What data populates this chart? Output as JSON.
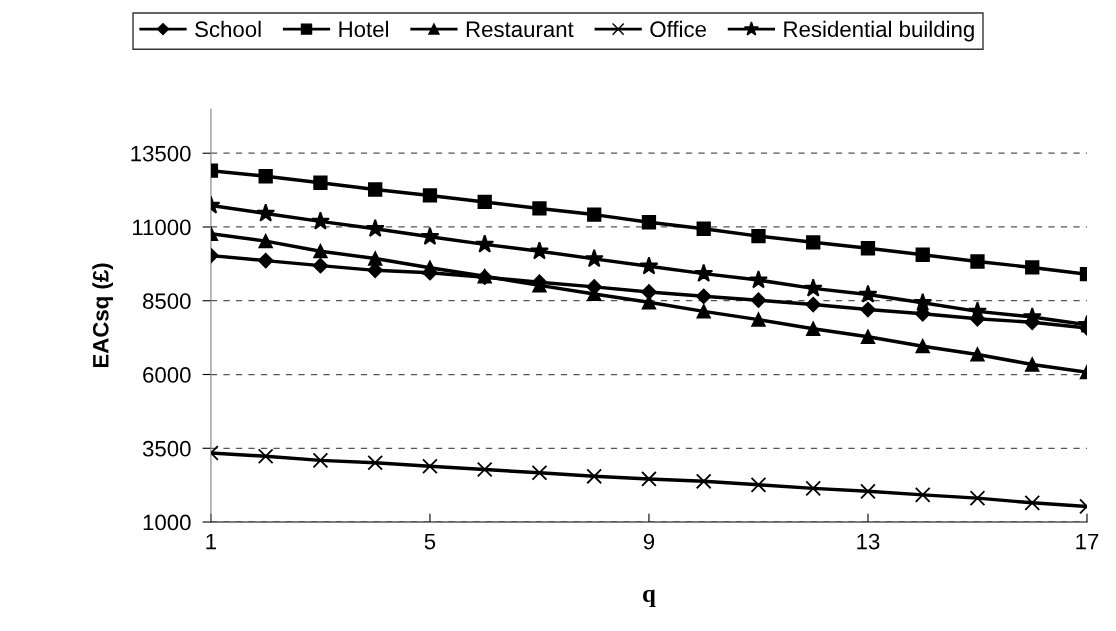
{
  "chart_data": {
    "type": "line",
    "xlabel": "q",
    "ylabel": "EACsq (£)",
    "x": [
      1,
      2,
      3,
      4,
      5,
      6,
      7,
      8,
      9,
      10,
      11,
      12,
      13,
      14,
      15,
      16,
      17
    ],
    "xlim": [
      1,
      17
    ],
    "xticks": [
      1,
      5,
      9,
      13,
      17
    ],
    "ylim": [
      1000,
      15000
    ],
    "yticks": [
      1000,
      3500,
      6000,
      8500,
      11000,
      13500
    ],
    "grid": "y",
    "legend": "top",
    "line_style": "solid",
    "series": [
      {
        "name": "School",
        "color": "#000000",
        "marker": "diamond",
        "values": [
          10030,
          9860,
          9690,
          9530,
          9450,
          9300,
          9130,
          8970,
          8800,
          8650,
          8520,
          8370,
          8200,
          8060,
          7890,
          7770,
          7580
        ]
      },
      {
        "name": "Hotel",
        "color": "#000000",
        "marker": "square",
        "values": [
          12910,
          12720,
          12500,
          12270,
          12070,
          11850,
          11630,
          11420,
          11160,
          10940,
          10690,
          10480,
          10280,
          10060,
          9830,
          9630,
          9400
        ]
      },
      {
        "name": "Restaurant",
        "color": "#000000",
        "marker": "triangle",
        "values": [
          10770,
          10520,
          10180,
          9930,
          9620,
          9330,
          9020,
          8730,
          8450,
          8140,
          7860,
          7550,
          7280,
          6960,
          6680,
          6340,
          6080
        ]
      },
      {
        "name": "Office",
        "color": "#000000",
        "marker": "cross",
        "values": [
          3340,
          3230,
          3090,
          3010,
          2890,
          2780,
          2670,
          2550,
          2460,
          2380,
          2260,
          2140,
          2040,
          1920,
          1810,
          1650,
          1530
        ]
      },
      {
        "name": "Residential building",
        "color": "#000000",
        "marker": "star",
        "values": [
          11730,
          11460,
          11190,
          10940,
          10670,
          10410,
          10180,
          9920,
          9670,
          9420,
          9200,
          8920,
          8710,
          8430,
          8140,
          7950,
          7690
        ]
      }
    ]
  }
}
